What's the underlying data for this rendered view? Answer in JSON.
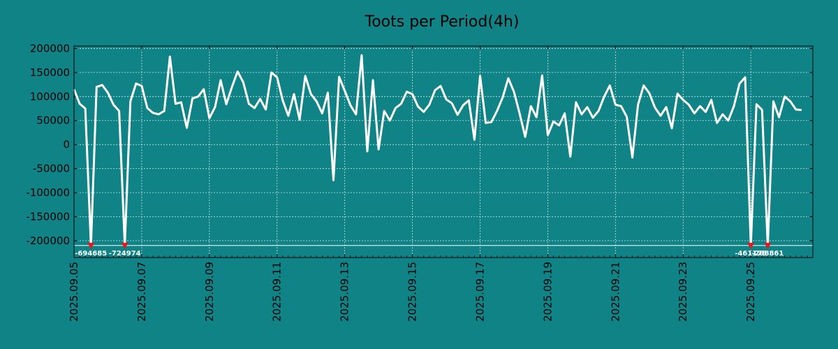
{
  "chart_data": {
    "type": "line",
    "title": "Toots per Period(4h)",
    "xlabel": "",
    "ylabel": "",
    "ylim": [
      -235000,
      205000
    ],
    "x_range": [
      0,
      131
    ],
    "grid": true,
    "y_ticks": [
      200000,
      150000,
      100000,
      50000,
      0,
      -50000,
      -100000,
      -150000,
      -200000
    ],
    "y_tick_labels": [
      "200000",
      "150000",
      "100000",
      "50000",
      "0",
      "-50000",
      "-100000",
      "-150000",
      "-200000"
    ],
    "x_ticks": [
      0,
      12,
      24,
      36,
      48,
      60,
      72,
      84,
      96,
      108,
      120
    ],
    "x_tick_labels": [
      "2025.09.05",
      "2025.09.07",
      "2025.09.09",
      "2025.09.11",
      "2025.09.13",
      "2025.09.15",
      "2025.09.17",
      "2025.09.19",
      "2025.09.21",
      "2025.09.23",
      "2025.09.25"
    ],
    "clip_floor": -210000,
    "series": [
      {
        "name": "Toots",
        "values": [
          115000,
          85000,
          75000,
          -210000,
          120000,
          124000,
          108000,
          83000,
          70000,
          -210000,
          90000,
          127000,
          122000,
          76000,
          66000,
          63000,
          70000,
          183000,
          85000,
          88000,
          35000,
          96000,
          100000,
          115000,
          55000,
          78000,
          134000,
          84000,
          120000,
          152000,
          130000,
          85000,
          76000,
          95000,
          73000,
          150000,
          140000,
          92000,
          60000,
          105000,
          52000,
          143000,
          105000,
          90000,
          65000,
          108000,
          -74000,
          141000,
          112000,
          82000,
          63000,
          186000,
          -14000,
          134000,
          -10000,
          70000,
          50000,
          76000,
          85000,
          110000,
          105000,
          79000,
          68000,
          83000,
          113000,
          122000,
          94000,
          86000,
          62000,
          82000,
          92000,
          10000,
          143000,
          45000,
          47000,
          70000,
          98000,
          138000,
          110000,
          65000,
          16000,
          80000,
          57000,
          144000,
          20000,
          48000,
          40000,
          65000,
          -25000,
          88000,
          63000,
          78000,
          56000,
          70000,
          100000,
          123000,
          83000,
          80000,
          58000,
          -27000,
          83000,
          123000,
          107000,
          77000,
          60000,
          78000,
          34000,
          106000,
          93000,
          83000,
          65000,
          80000,
          68000,
          93000,
          45000,
          63000,
          50000,
          80000,
          127000,
          140000,
          -210000,
          84000,
          72000,
          -210000,
          90000,
          57000,
          100000,
          90000,
          73000,
          72000
        ]
      }
    ],
    "clipped_labels": [
      {
        "index": 3,
        "label": "-694685"
      },
      {
        "index": 9,
        "label": "-724974"
      },
      {
        "index": 120,
        "label": "-461178"
      },
      {
        "index": 123,
        "label": "-288861"
      }
    ],
    "colors": {
      "background": "#108387",
      "line": "#ffffff",
      "marker": "#e8161a",
      "grid": "#ffffff",
      "text": "#000000"
    }
  }
}
